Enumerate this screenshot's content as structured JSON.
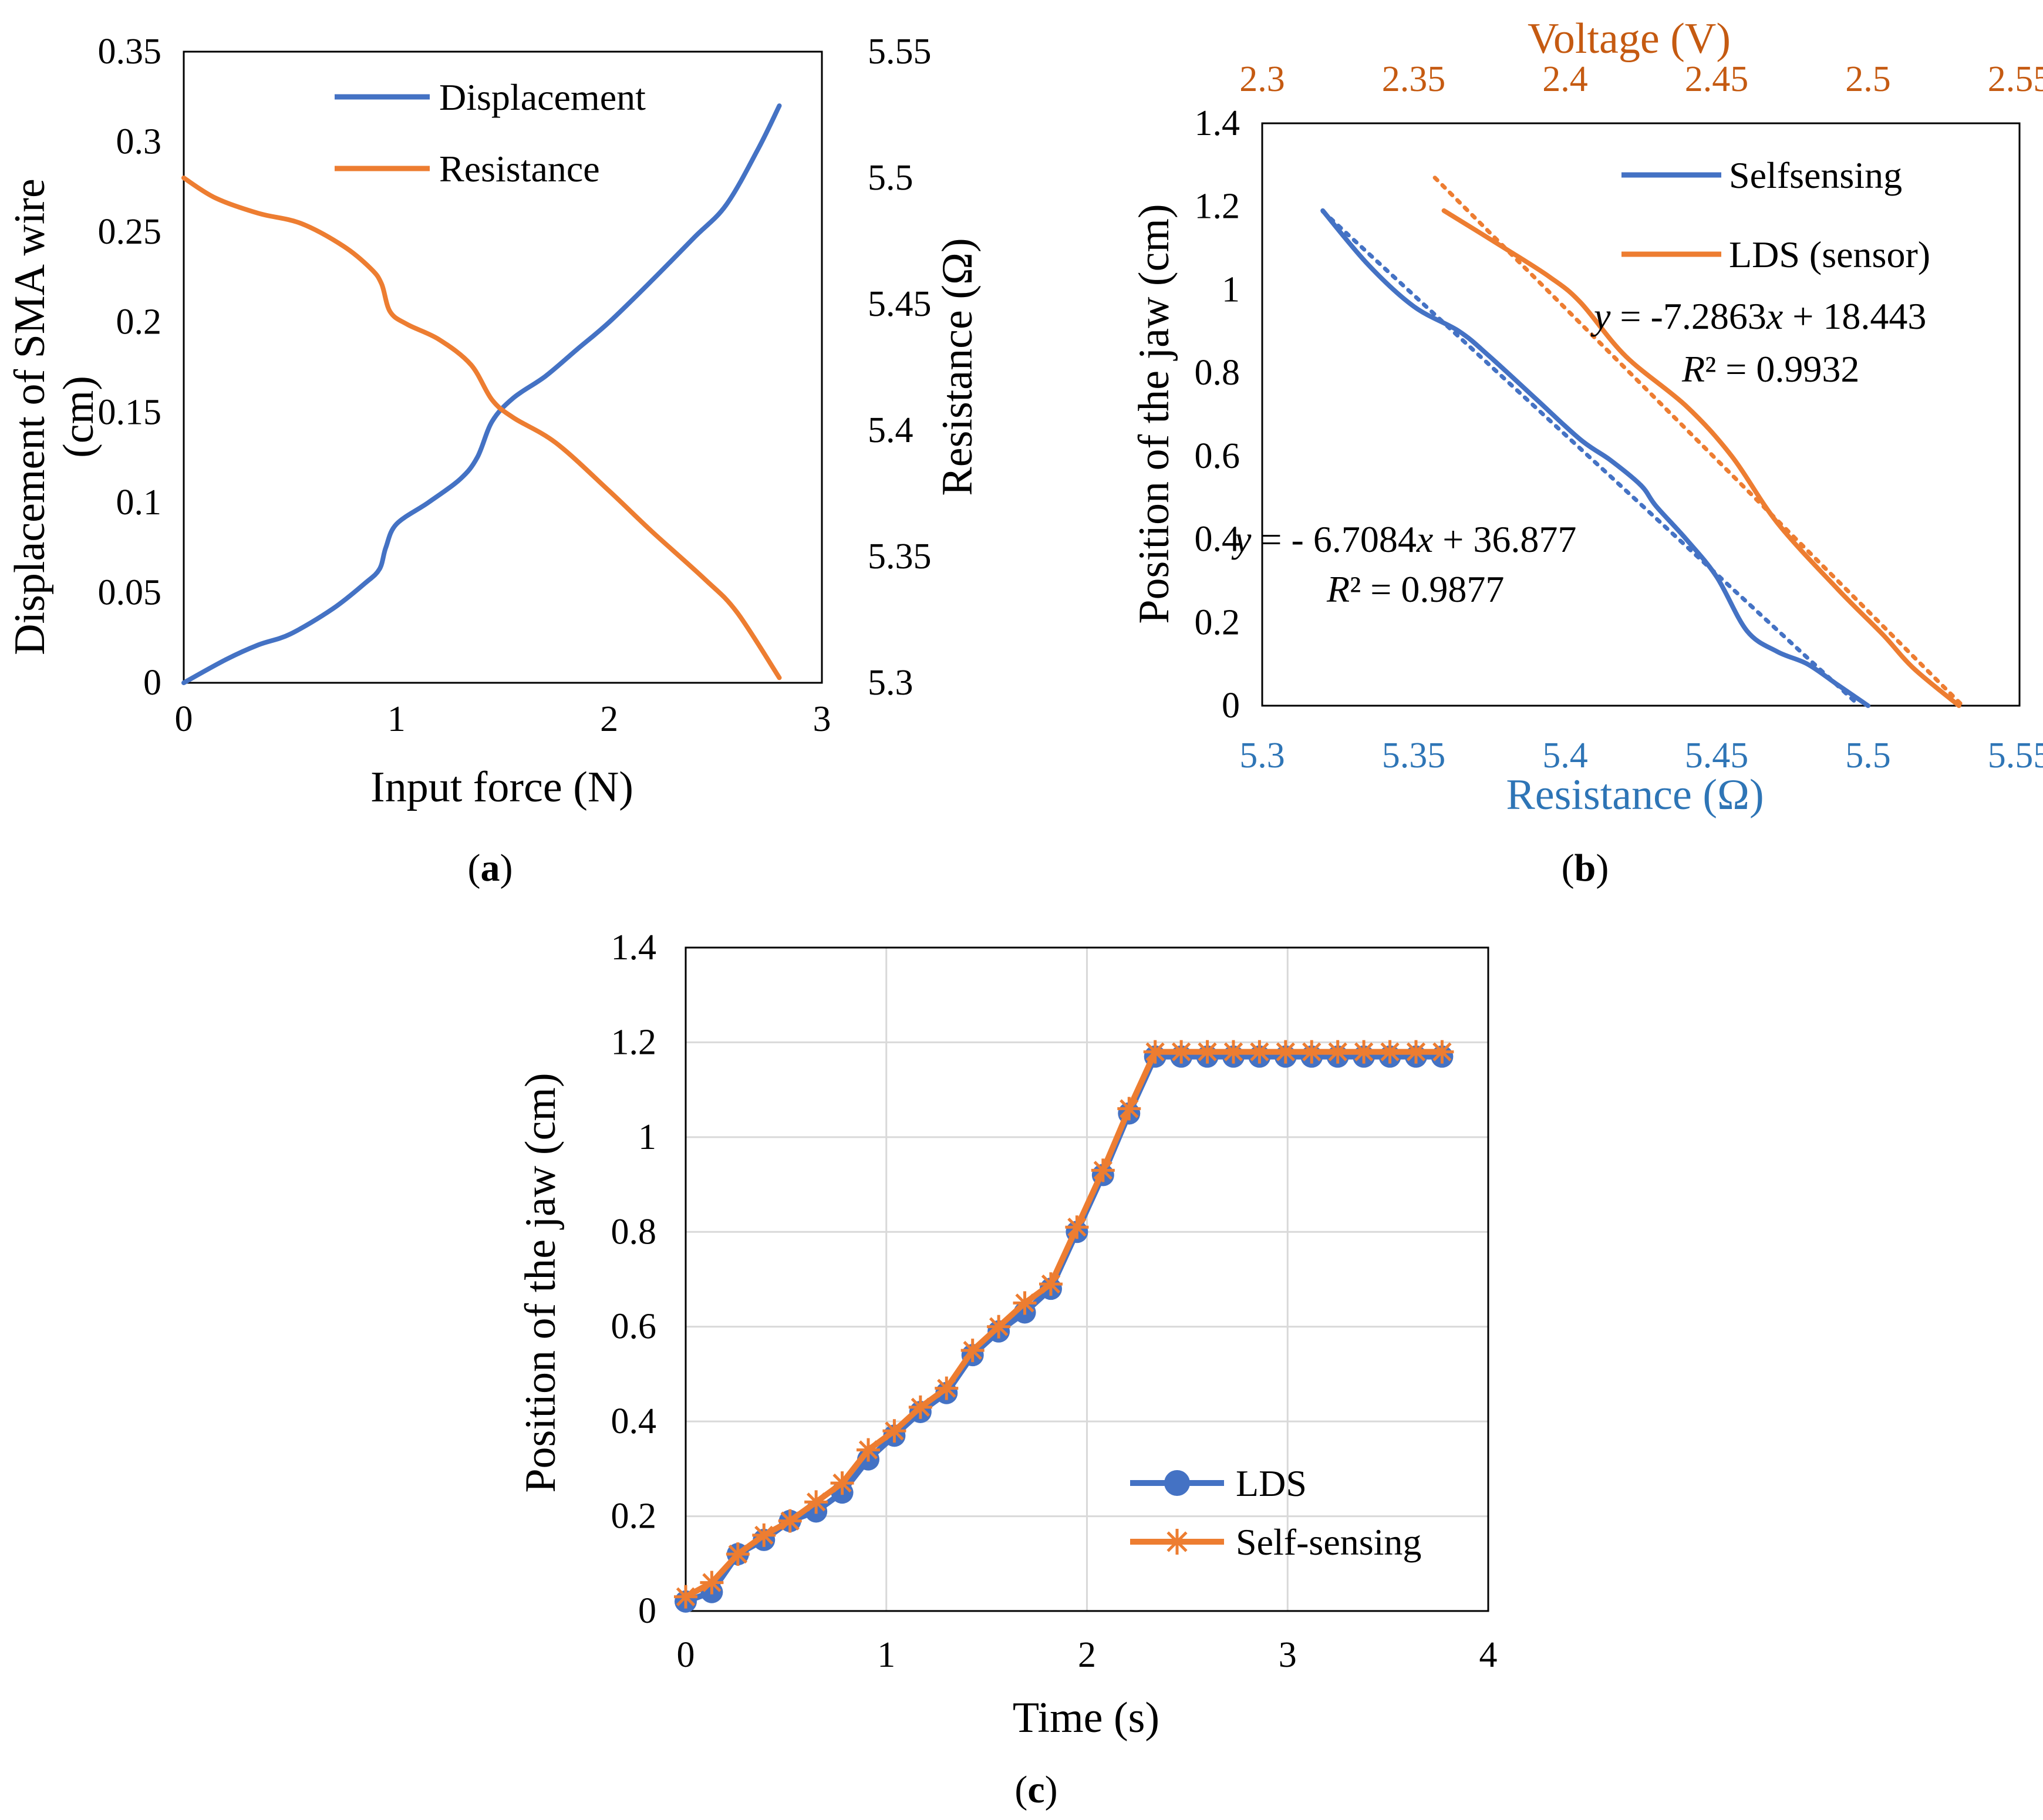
{
  "colors": {
    "blue": "#4472C4",
    "orange": "#ED7D31",
    "blue_text": "#2E75B6",
    "orange_text": "#C55A11",
    "axis": "#000000",
    "grid": "#D9D9D9"
  },
  "chart_data": [
    {
      "id": "a",
      "type": "line",
      "panel_label": "(a)",
      "panel_letter": "a",
      "xlabel": "Input force (N)",
      "ylabel": "Displacement of SMA wire (cm)",
      "ylabel_line1": "Displacement of SMA wire",
      "ylabel_line2": "(cm)",
      "y2label": "Resistance (Ω)",
      "xlim": [
        0,
        3
      ],
      "ylim": [
        0,
        0.35
      ],
      "y2lim": [
        5.3,
        5.55
      ],
      "xticks": [
        0,
        1,
        2,
        3
      ],
      "yticks": [
        0,
        0.05,
        0.1,
        0.15,
        0.2,
        0.25,
        0.3,
        0.35
      ],
      "y2ticks": [
        5.3,
        5.35,
        5.4,
        5.45,
        5.5,
        5.55
      ],
      "grid": false,
      "legend": "top-center",
      "series": [
        {
          "name": "Displacement",
          "axis": "left",
          "color": "#4472C4",
          "x": [
            0,
            0.2,
            0.35,
            0.5,
            0.7,
            0.85,
            0.92,
            0.95,
            1.0,
            1.15,
            1.3,
            1.38,
            1.45,
            1.55,
            1.7,
            1.85,
            2.0,
            2.2,
            2.4,
            2.55,
            2.7,
            2.8
          ],
          "y": [
            0,
            0.013,
            0.021,
            0.027,
            0.041,
            0.055,
            0.063,
            0.075,
            0.088,
            0.1,
            0.113,
            0.125,
            0.145,
            0.158,
            0.17,
            0.185,
            0.2,
            0.223,
            0.247,
            0.265,
            0.296,
            0.32
          ]
        },
        {
          "name": "Resistance",
          "axis": "right",
          "color": "#ED7D31",
          "x": [
            0,
            0.15,
            0.35,
            0.55,
            0.75,
            0.88,
            0.93,
            0.97,
            1.05,
            1.2,
            1.35,
            1.45,
            1.55,
            1.75,
            2.0,
            2.2,
            2.45,
            2.6,
            2.8
          ],
          "y": [
            5.5,
            5.492,
            5.486,
            5.482,
            5.473,
            5.464,
            5.458,
            5.447,
            5.442,
            5.436,
            5.426,
            5.412,
            5.405,
            5.395,
            5.376,
            5.36,
            5.341,
            5.328,
            5.302
          ]
        }
      ]
    },
    {
      "id": "b",
      "type": "line",
      "panel_label": "(b)",
      "panel_letter": "b",
      "xlabel": "Resistance (Ω)",
      "x2label": "Voltage (V)",
      "ylabel": "Position of the jaw (cm)",
      "xlim": [
        5.3,
        5.55
      ],
      "x2lim": [
        2.3,
        2.55
      ],
      "ylim": [
        0,
        1.4
      ],
      "xticks": [
        5.3,
        5.35,
        5.4,
        5.45,
        5.5,
        5.55
      ],
      "x2ticks": [
        2.3,
        2.35,
        2.4,
        2.45,
        2.5,
        2.55
      ],
      "yticks": [
        0,
        0.2,
        0.4,
        0.6,
        0.8,
        1,
        1.2,
        1.4
      ],
      "grid": false,
      "legend": "top-right",
      "series": [
        {
          "name": "Selfsensing",
          "axis": "bottom",
          "color": "#4472C4",
          "x": [
            5.32,
            5.335,
            5.35,
            5.365,
            5.375,
            5.39,
            5.405,
            5.415,
            5.425,
            5.43,
            5.44,
            5.45,
            5.46,
            5.47,
            5.48,
            5.49,
            5.5
          ],
          "y": [
            1.19,
            1.06,
            0.96,
            0.9,
            0.84,
            0.74,
            0.64,
            0.59,
            0.53,
            0.48,
            0.4,
            0.31,
            0.18,
            0.13,
            0.1,
            0.05,
            0
          ]
        },
        {
          "name": "LDS (sensor)",
          "axis": "top",
          "color": "#ED7D31",
          "x": [
            2.36,
            2.38,
            2.395,
            2.405,
            2.42,
            2.44,
            2.455,
            2.47,
            2.49,
            2.505,
            2.515,
            2.53
          ],
          "y": [
            1.19,
            1.1,
            1.03,
            0.97,
            0.84,
            0.72,
            0.6,
            0.44,
            0.28,
            0.17,
            0.09,
            0
          ]
        }
      ],
      "trendlines": [
        {
          "series": "Selfsensing",
          "axis": "bottom",
          "equation": "y = - 6.7084x + 36.877",
          "r2": "R² = 0.9877",
          "eq_prefix": "y",
          "eq_mid": " = - 6.7084",
          "eq_var": "x",
          "eq_suffix": " + 36.877",
          "r2_var": "R",
          "r2_rest": "² = 0.9877",
          "slope": -6.7084,
          "intercept": 36.877,
          "x_range": [
            5.32,
            5.497
          ]
        },
        {
          "series": "LDS (sensor)",
          "axis": "top",
          "equation": "y = -7.2863x + 18.443",
          "r2": "R² = 0.9932",
          "eq_prefix": "y",
          "eq_mid": " = -7.2863",
          "eq_var": "x",
          "eq_suffix": " + 18.443",
          "r2_var": "R",
          "r2_rest": "² = 0.9932",
          "slope": -7.2863,
          "intercept": 18.443,
          "x_range": [
            2.357,
            2.531
          ]
        }
      ]
    },
    {
      "id": "c",
      "type": "line",
      "panel_label": "(c)",
      "panel_letter": "c",
      "xlabel": "Time (s)",
      "ylabel": "Position of the jaw (cm)",
      "xlim": [
        0,
        4
      ],
      "ylim": [
        0,
        1.4
      ],
      "xticks": [
        0,
        1,
        2,
        3,
        4
      ],
      "yticks": [
        0,
        0.2,
        0.4,
        0.6,
        0.8,
        1,
        1.2,
        1.4
      ],
      "grid": true,
      "legend": "bottom-right",
      "series": [
        {
          "name": "LDS",
          "marker": "circle",
          "color": "#4472C4",
          "x": [
            0,
            0.13,
            0.26,
            0.39,
            0.52,
            0.65,
            0.78,
            0.91,
            1.04,
            1.17,
            1.3,
            1.43,
            1.56,
            1.69,
            1.82,
            1.95,
            2.08,
            2.21,
            2.34,
            2.47,
            2.6,
            2.73,
            2.86,
            2.99,
            3.12,
            3.25,
            3.38,
            3.51,
            3.64,
            3.77
          ],
          "y": [
            0.02,
            0.04,
            0.12,
            0.15,
            0.19,
            0.21,
            0.25,
            0.32,
            0.37,
            0.42,
            0.46,
            0.54,
            0.59,
            0.63,
            0.68,
            0.8,
            0.92,
            1.05,
            1.17,
            1.17,
            1.17,
            1.17,
            1.17,
            1.17,
            1.17,
            1.17,
            1.17,
            1.17,
            1.17,
            1.17
          ]
        },
        {
          "name": "Self-sensing",
          "marker": "star",
          "color": "#ED7D31",
          "x": [
            0,
            0.13,
            0.26,
            0.39,
            0.52,
            0.65,
            0.78,
            0.91,
            1.04,
            1.17,
            1.3,
            1.43,
            1.56,
            1.69,
            1.82,
            1.95,
            2.08,
            2.21,
            2.34,
            2.47,
            2.6,
            2.73,
            2.86,
            2.99,
            3.12,
            3.25,
            3.38,
            3.51,
            3.64,
            3.77
          ],
          "y": [
            0.03,
            0.06,
            0.12,
            0.16,
            0.19,
            0.23,
            0.27,
            0.34,
            0.38,
            0.43,
            0.47,
            0.55,
            0.6,
            0.65,
            0.69,
            0.81,
            0.93,
            1.06,
            1.18,
            1.18,
            1.18,
            1.18,
            1.18,
            1.18,
            1.18,
            1.18,
            1.18,
            1.18,
            1.18,
            1.18
          ]
        }
      ]
    }
  ]
}
